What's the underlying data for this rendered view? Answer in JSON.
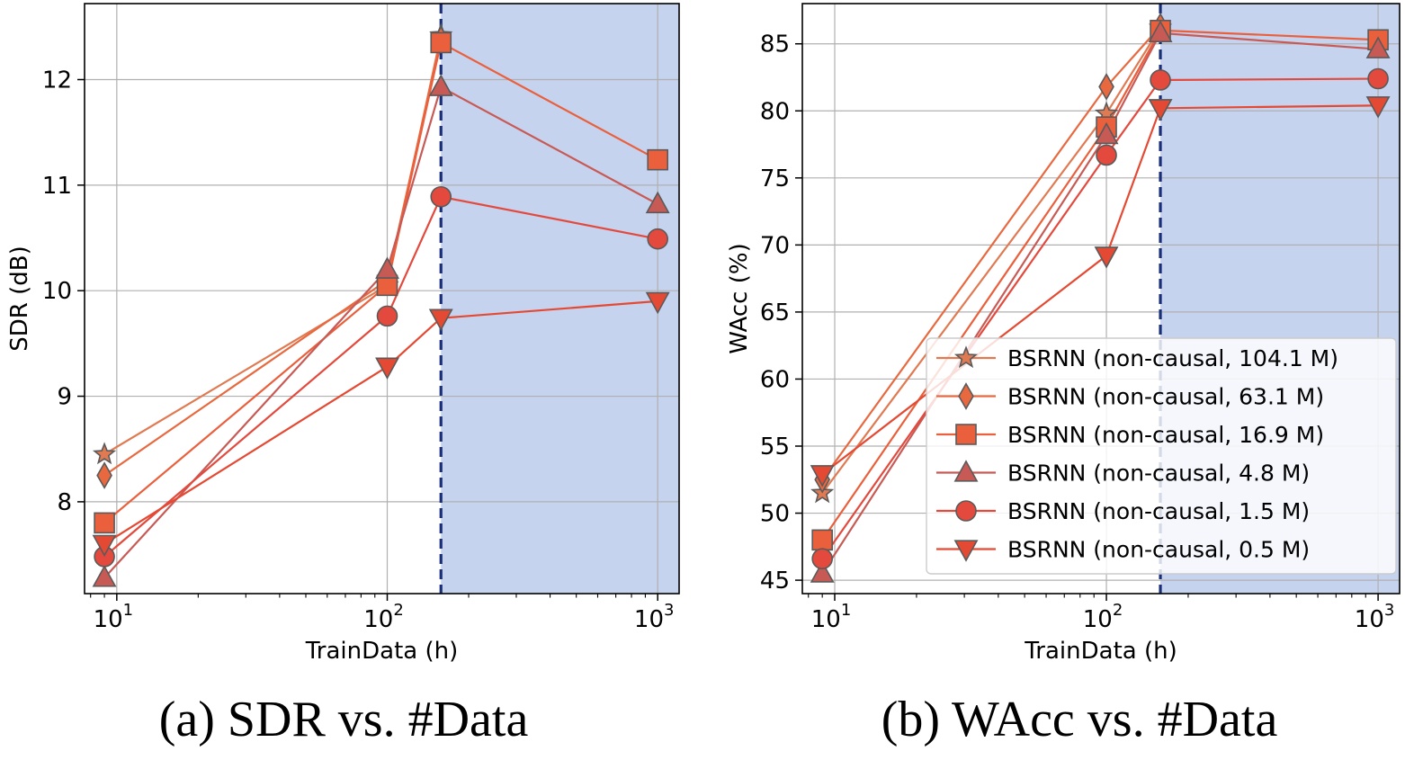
{
  "colors": {
    "shade": "#c5d3ee",
    "threshold_line": "#1a2f78",
    "grid": "#b0b0b0",
    "series": {
      "104.1": "#e07a52",
      "63.1": "#e8693f",
      "16.9": "#ea5f3c",
      "4.8": "#c85a56",
      "1.5": "#e3493d",
      "0.5": "#e44a33"
    }
  },
  "chart_data": [
    {
      "type": "line",
      "panel": "a",
      "caption": "(a) SDR vs. #Data",
      "xlabel": "TrainData (h)",
      "ylabel": "SDR (dB)",
      "xscale": "log",
      "xlim": [
        7.6,
        1200
      ],
      "ylim": [
        7.13,
        12.72
      ],
      "yticks": [
        8,
        9,
        10,
        11,
        12
      ],
      "xticks": [
        {
          "value": 10,
          "base": "10",
          "exp": "1"
        },
        {
          "value": 100,
          "base": "10",
          "exp": "2"
        },
        {
          "value": 1000,
          "base": "10",
          "exp": "3"
        }
      ],
      "threshold_x": 158,
      "shaded_from_x": 158,
      "grid": true,
      "x": [
        9,
        100,
        158,
        1000
      ],
      "series": [
        {
          "name": "BSRNN (non-causal, 104.1 M)",
          "marker": "star",
          "color_key": "104.1",
          "values": [
            8.45,
            10.05,
            12.42,
            null
          ]
        },
        {
          "name": "BSRNN (non-causal, 63.1 M)",
          "marker": "diamond",
          "color_key": "63.1",
          "values": [
            8.25,
            10.1,
            12.38,
            null
          ]
        },
        {
          "name": "BSRNN (non-causal, 16.9 M)",
          "marker": "square",
          "color_key": "16.9",
          "values": [
            7.8,
            10.05,
            12.35,
            11.24
          ]
        },
        {
          "name": "BSRNN (non-causal, 4.8 M)",
          "marker": "triangle-up",
          "color_key": "4.8",
          "values": [
            7.28,
            10.2,
            11.93,
            10.82
          ]
        },
        {
          "name": "BSRNN (non-causal, 1.5 M)",
          "marker": "circle",
          "color_key": "1.5",
          "values": [
            7.48,
            9.76,
            10.89,
            10.49
          ]
        },
        {
          "name": "BSRNN (non-causal, 0.5 M)",
          "marker": "triangle-down",
          "color_key": "0.5",
          "values": [
            7.6,
            9.28,
            9.74,
            9.9
          ]
        }
      ]
    },
    {
      "type": "line",
      "panel": "b",
      "caption": "(b) WAcc vs. #Data",
      "xlabel": "TrainData (h)",
      "ylabel": "WAcc (%)",
      "xscale": "log",
      "xlim": [
        7.6,
        1200
      ],
      "ylim": [
        44,
        88
      ],
      "yticks": [
        45,
        50,
        55,
        60,
        65,
        70,
        75,
        80,
        85
      ],
      "xticks": [
        {
          "value": 10,
          "base": "10",
          "exp": "1"
        },
        {
          "value": 100,
          "base": "10",
          "exp": "2"
        },
        {
          "value": 1000,
          "base": "10",
          "exp": "3"
        }
      ],
      "threshold_x": 158,
      "shaded_from_x": 158,
      "grid": true,
      "legend_position": "lower-right",
      "x": [
        9,
        100,
        158,
        1000
      ],
      "series": [
        {
          "name": "BSRNN (non-causal, 104.1 M)",
          "marker": "star",
          "color_key": "104.1",
          "values": [
            51.5,
            79.8,
            86.2,
            null
          ]
        },
        {
          "name": "BSRNN (non-causal, 63.1 M)",
          "marker": "diamond",
          "color_key": "63.1",
          "values": [
            52.5,
            81.8,
            86.3,
            null
          ]
        },
        {
          "name": "BSRNN (non-causal, 16.9 M)",
          "marker": "square",
          "color_key": "16.9",
          "values": [
            48.0,
            78.8,
            86.0,
            85.3
          ]
        },
        {
          "name": "BSRNN (non-causal, 4.8 M)",
          "marker": "triangle-up",
          "color_key": "4.8",
          "values": [
            45.5,
            78.2,
            85.8,
            84.6
          ]
        },
        {
          "name": "BSRNN (non-causal, 1.5 M)",
          "marker": "circle",
          "color_key": "1.5",
          "values": [
            46.6,
            76.7,
            82.3,
            82.4
          ]
        },
        {
          "name": "BSRNN (non-causal, 0.5 M)",
          "marker": "triangle-down",
          "color_key": "0.5",
          "values": [
            52.9,
            69.2,
            80.2,
            80.4
          ]
        }
      ]
    }
  ]
}
